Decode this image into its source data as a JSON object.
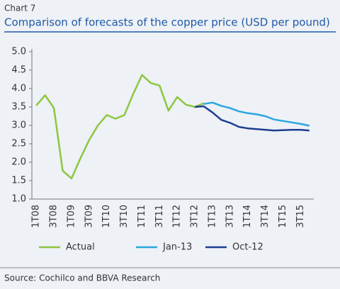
{
  "chart_data": {
    "type": "line",
    "label": "Chart 7",
    "title": "Comparison of forecasts of the copper price (USD per pound)",
    "source": "Source: Cochilco and BBVA Research",
    "categories": [
      "1T08",
      null,
      "3T08",
      null,
      "1T09",
      null,
      "3T09",
      null,
      "1T10",
      null,
      "3T10",
      null,
      "1T11",
      null,
      "3T11",
      null,
      "1T12",
      null,
      "3T12",
      null,
      "1T13",
      null,
      "3T13",
      null,
      "1T14",
      null,
      "3T14",
      null,
      "1T15",
      null,
      "3T15",
      null
    ],
    "series": [
      {
        "name": "Actual",
        "color": "#8dc63f",
        "values": [
          3.54,
          3.82,
          3.47,
          1.77,
          1.56,
          2.1,
          2.6,
          3.0,
          3.28,
          3.18,
          3.28,
          3.85,
          4.37,
          4.15,
          4.08,
          3.4,
          3.77,
          3.56,
          3.5,
          3.6,
          null,
          null,
          null,
          null,
          null,
          null,
          null,
          null,
          null,
          null,
          null,
          null
        ]
      },
      {
        "name": "Jan-13",
        "color": "#2aa7e0",
        "values": [
          null,
          null,
          null,
          null,
          null,
          null,
          null,
          null,
          null,
          null,
          null,
          null,
          null,
          null,
          null,
          null,
          null,
          null,
          null,
          3.58,
          3.62,
          3.53,
          3.47,
          3.38,
          3.33,
          3.3,
          3.25,
          3.16,
          3.12,
          3.08,
          3.04,
          2.99
        ]
      },
      {
        "name": "Oct-12",
        "color": "#1d3f8f",
        "values": [
          null,
          null,
          null,
          null,
          null,
          null,
          null,
          null,
          null,
          null,
          null,
          null,
          null,
          null,
          null,
          null,
          null,
          null,
          3.5,
          3.52,
          3.35,
          3.15,
          3.07,
          2.96,
          2.92,
          2.9,
          2.88,
          2.86,
          2.87,
          2.88,
          2.88,
          2.86
        ]
      }
    ],
    "ylim": [
      1.0,
      5.0
    ],
    "yticks": [
      {
        "value": 1.0,
        "label": "1.0"
      },
      1.5,
      {
        "value": 2.0,
        "label": "2.0"
      },
      2.5,
      {
        "value": 3.0,
        "label": "3.0"
      },
      3.5,
      {
        "value": 4.0,
        "label": "4.0"
      },
      4.5,
      {
        "value": 5.0,
        "label": "5.0"
      }
    ],
    "grid": false,
    "legend": "bottom"
  }
}
